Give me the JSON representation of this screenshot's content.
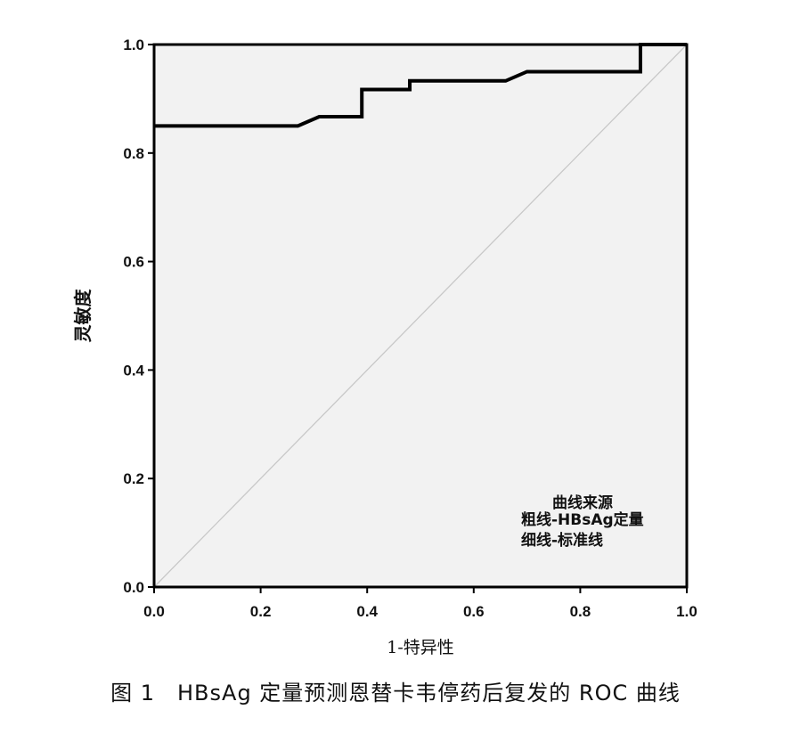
{
  "caption": "图 1　HBsAg 定量预测恩替卡韦停药后复发的 ROC 曲线",
  "chart_data": {
    "type": "line",
    "xlabel": "1-特异性",
    "ylabel": "灵敏度",
    "xlim": [
      0,
      1
    ],
    "ylim": [
      0,
      1
    ],
    "x_ticks": [
      "0.0",
      "0.2",
      "0.4",
      "0.6",
      "0.8",
      "1.0"
    ],
    "y_ticks": [
      "0.0",
      "0.2",
      "0.4",
      "0.6",
      "0.8",
      "1.0"
    ],
    "grid": false,
    "legend": {
      "position": "bottom-right",
      "title": "曲线来源",
      "entries": [
        "粗线-HBsAg定量",
        "细线-标准线"
      ]
    },
    "series": [
      {
        "name": "粗线-HBsAg定量",
        "style": "thick",
        "x": [
          0,
          0.27,
          0.31,
          0.39,
          0.39,
          0.48,
          0.48,
          0.66,
          0.7,
          0.913,
          0.913,
          1.0
        ],
        "y": [
          0.85,
          0.85,
          0.867,
          0.867,
          0.917,
          0.917,
          0.933,
          0.933,
          0.95,
          0.95,
          1.0,
          1.0
        ]
      },
      {
        "name": "细线-标准线",
        "style": "thin",
        "x": [
          0,
          1
        ],
        "y": [
          0,
          1
        ]
      }
    ],
    "colors": {
      "plot_bg": "#f2f2f2",
      "main_line": "#000000",
      "reference_line": "#c8c8c8"
    }
  }
}
